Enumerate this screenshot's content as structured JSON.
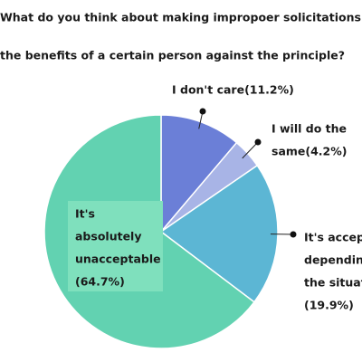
{
  "chart_data": {
    "type": "pie",
    "title": [
      "What do you think about making impropoer solicitations",
      "the benefits of a certain person against the principle?"
    ],
    "categories": [
      [
        "I don't care"
      ],
      [
        "I will do the",
        "same"
      ],
      [
        "It's acceptable",
        "depending on",
        "the situation"
      ],
      [
        "It's",
        "absolutely",
        "unacceptable"
      ]
    ],
    "values": [
      11.2,
      4.2,
      19.9,
      64.7
    ],
    "value_labels": [
      "(11.2%)",
      "(4.2%)",
      "(19.9%)",
      "(64.7%)"
    ],
    "colors": [
      "#6b7fd7",
      "#a8b4e6",
      "#5cb6d4",
      "#62d2b1"
    ]
  }
}
